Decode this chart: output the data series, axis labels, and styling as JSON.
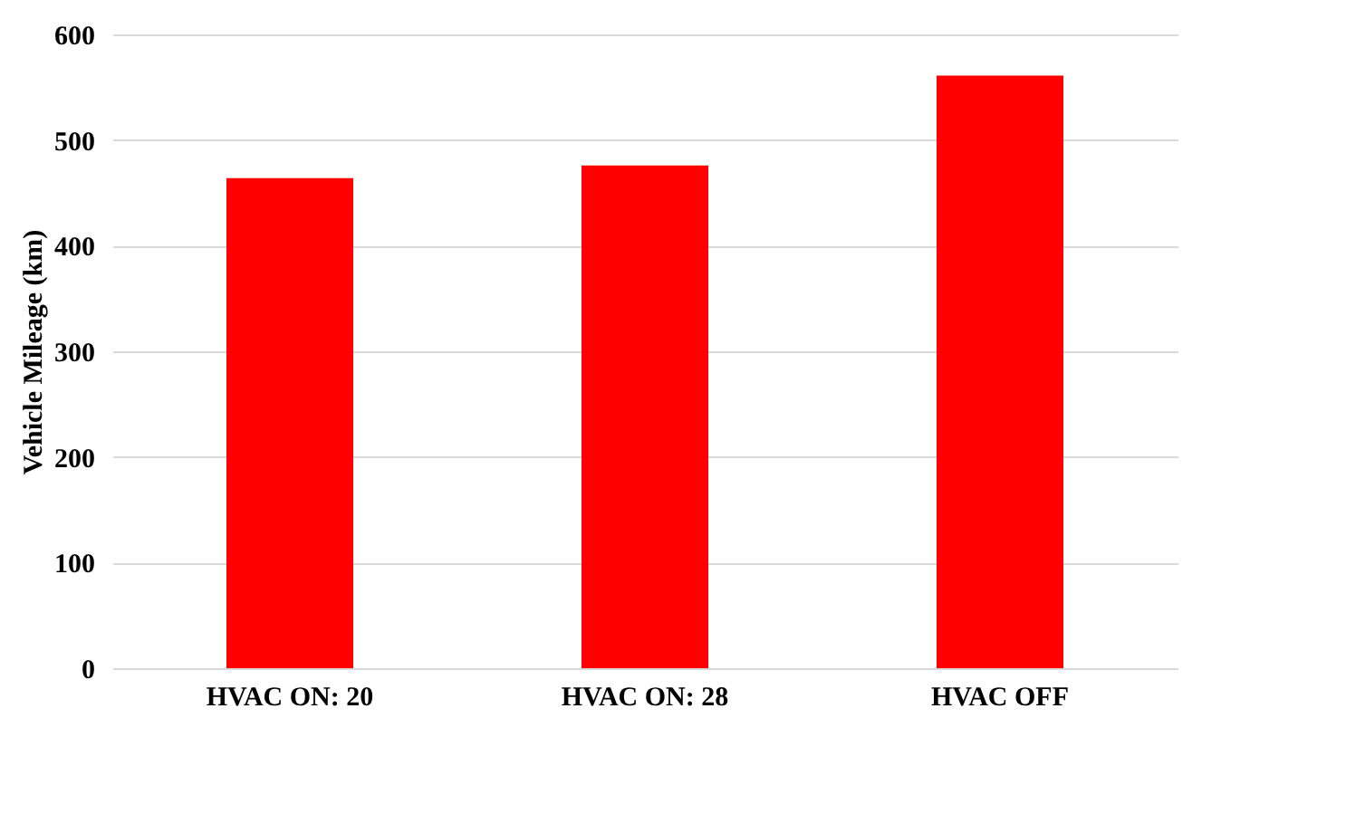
{
  "chart_data": {
    "type": "bar",
    "ylabel": "Vehicle Mileage (km)",
    "categories": [
      "HVAC ON: 20",
      "HVAC ON: 28",
      "HVAC OFF"
    ],
    "values": [
      464,
      476,
      561
    ],
    "color": "#ff0000",
    "ylim": [
      0,
      600
    ],
    "yticks": [
      0,
      100,
      200,
      300,
      400,
      500,
      600
    ],
    "grid": "y"
  }
}
